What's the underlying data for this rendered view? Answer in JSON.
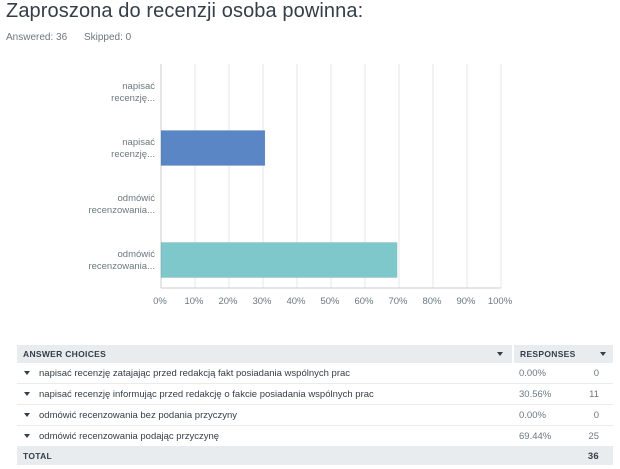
{
  "question": {
    "title": "Zaproszona do recenzji osoba powinna:",
    "answered": "Answered: 36",
    "skipped": "Skipped: 0"
  },
  "chart_data": {
    "type": "bar",
    "orientation": "horizontal",
    "categories": [
      "napisać recenzję...",
      "napisać recenzję...",
      "odmówić recenzowania...",
      "odmówić recenzowania..."
    ],
    "category_lines": [
      [
        "napisać",
        "recenzję..."
      ],
      [
        "napisać",
        "recenzję..."
      ],
      [
        "odmówić",
        "recenzowania..."
      ],
      [
        "odmówić",
        "recenzowania..."
      ]
    ],
    "values": [
      0.0,
      30.56,
      0.0,
      69.44
    ],
    "colors": [
      "#5a86c6",
      "#5a86c6",
      "#7ec8cc",
      "#7ec8cc"
    ],
    "xlim": [
      0,
      100
    ],
    "xticks": [
      "0%",
      "10%",
      "20%",
      "30%",
      "40%",
      "50%",
      "60%",
      "70%",
      "80%",
      "90%",
      "100%"
    ],
    "grid": true
  },
  "table": {
    "header_choices": "ANSWER CHOICES",
    "header_responses": "RESPONSES",
    "rows": [
      {
        "label": "napisać recenzję zatajając przed redakcją fakt posiadania wspólnych prac",
        "pct": "0.00%",
        "count": "0"
      },
      {
        "label": "napisać recenzję informując przed redakcję o fakcie posiadania wspólnych prac",
        "pct": "30.56%",
        "count": "11"
      },
      {
        "label": "odmówić recenzowania bez podania przyczyny",
        "pct": "0.00%",
        "count": "0"
      },
      {
        "label": "odmówić recenzowania podając przyczynę",
        "pct": "69.44%",
        "count": "25"
      }
    ],
    "total_label": "TOTAL",
    "total_value": "36"
  }
}
